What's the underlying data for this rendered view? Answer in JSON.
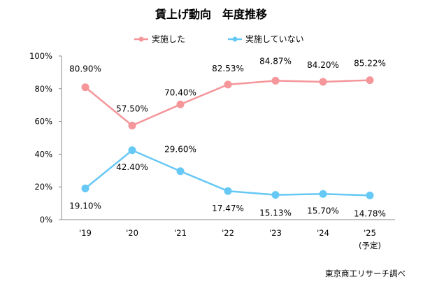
{
  "chart_data": {
    "type": "line",
    "title": "賃上げ動向　年度推移",
    "categories": [
      "'19",
      "'20",
      "'21",
      "'22",
      "'23",
      "'24",
      "'25"
    ],
    "category_sublabels": [
      "",
      "",
      "",
      "",
      "",
      "",
      "(予定)"
    ],
    "ylim": [
      0,
      100
    ],
    "yticks": [
      0,
      20,
      40,
      60,
      80,
      100
    ],
    "ytick_labels": [
      "0%",
      "20%",
      "40%",
      "60%",
      "80%",
      "100%"
    ],
    "xlabel": "",
    "ylabel": "",
    "grid": false,
    "legend_position": "top-center",
    "series": [
      {
        "name": "実施した",
        "color": "#f4969a",
        "values": [
          80.9,
          57.5,
          70.4,
          82.53,
          84.87,
          84.2,
          85.22
        ],
        "labels": [
          "80.90%",
          "57.50%",
          "70.40%",
          "82.53%",
          "84.87%",
          "84.20%",
          "85.22%"
        ]
      },
      {
        "name": "実施していない",
        "color": "#66c8f4",
        "values": [
          19.1,
          42.4,
          29.6,
          17.47,
          15.13,
          15.7,
          14.78
        ],
        "labels": [
          "19.10%",
          "42.40%",
          "29.60%",
          "17.47%",
          "15.13%",
          "15.70%",
          "14.78%"
        ]
      }
    ]
  },
  "source": "東京商工リサーチ調べ"
}
